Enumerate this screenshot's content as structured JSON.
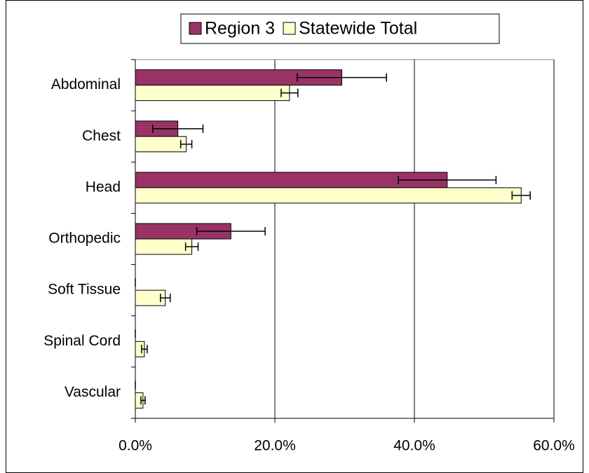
{
  "chart_data": {
    "type": "hbar",
    "categories": [
      "Abdominal",
      "Chest",
      "Head",
      "Orthopedic",
      "Soft Tissue",
      "Spinal Cord",
      "Vascular"
    ],
    "series": [
      {
        "name": "Region 3",
        "color": "#993366",
        "values": [
          29.6,
          6.1,
          44.7,
          13.7,
          0,
          0,
          0
        ],
        "errors": [
          6.4,
          3.6,
          7.0,
          4.9,
          0,
          0,
          0
        ]
      },
      {
        "name": "Statewide Total",
        "color": "#ffffcc",
        "values": [
          22.1,
          7.3,
          55.3,
          8.1,
          4.3,
          1.3,
          1.1
        ],
        "errors": [
          1.2,
          0.8,
          1.3,
          0.9,
          0.7,
          0.4,
          0.3
        ]
      }
    ],
    "xlim": [
      0,
      60
    ],
    "xticks": [
      {
        "value": 0,
        "label": "0.0%"
      },
      {
        "value": 20,
        "label": "20.0%"
      },
      {
        "value": 40,
        "label": "40.0%"
      },
      {
        "value": 60,
        "label": "60.0%"
      }
    ],
    "grid": true,
    "legend": "top"
  }
}
